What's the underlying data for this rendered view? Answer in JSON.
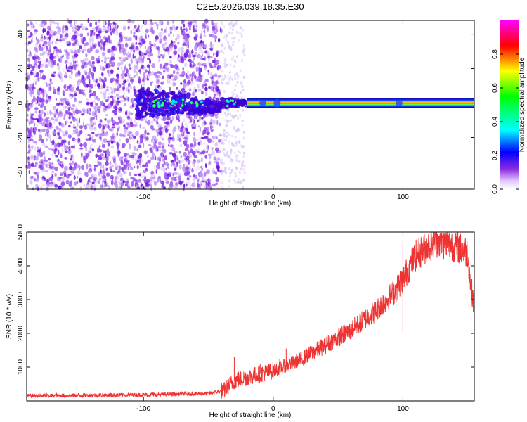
{
  "title": "C2E5.2026.039.18.35.E30",
  "colors": {
    "spectrogram_scatter": "#7a1fe0",
    "snr_line": "#ee3333",
    "axis": "#000000",
    "background": "#ffffff"
  },
  "chart_data": [
    {
      "type": "heatmap",
      "name": "spectrogram",
      "xlabel": "Height of straight line (km)",
      "ylabel": "Frequency (Hz)",
      "xlim": [
        -190,
        155
      ],
      "ylim": [
        -50,
        48
      ],
      "x_ticks": [
        -100,
        0,
        100
      ],
      "y_ticks": [
        -40,
        -20,
        0,
        20,
        40
      ],
      "x_tick_labels": [
        "-100",
        "0",
        "100"
      ],
      "y_tick_labels": [
        "-40",
        "-20",
        "0",
        "20",
        "40"
      ],
      "noise_region_x": [
        -190,
        -40
      ],
      "sparse_region_x": [
        -40,
        -22
      ],
      "signal_band": {
        "x_start": -20,
        "x_end": 155,
        "freq": 0
      },
      "signal_start_x": -105,
      "colorbar": {
        "label": "Normalized spectral amplitude",
        "range": [
          0.0,
          1.0
        ],
        "ticks": [
          0.0,
          0.2,
          0.4,
          0.6,
          0.8
        ],
        "tick_labels": [
          "0.0",
          "0.2",
          "0.4",
          "0.6",
          "0.8"
        ]
      }
    },
    {
      "type": "line",
      "name": "snr",
      "xlabel": "Height of straight line (km)",
      "ylabel": "SNR (10 * v/v)",
      "xlim": [
        -190,
        155
      ],
      "ylim": [
        0,
        5000
      ],
      "x_ticks": [
        -100,
        0,
        100
      ],
      "y_ticks": [
        1000,
        2000,
        3000,
        4000,
        5000
      ],
      "x_tick_labels": [
        "-100",
        "0",
        "100"
      ],
      "y_tick_labels": [
        "1000",
        "2000",
        "3000",
        "4000",
        "5000"
      ],
      "trend_points": [
        [
          -190,
          150
        ],
        [
          -100,
          180
        ],
        [
          -50,
          220
        ],
        [
          -38,
          300
        ],
        [
          -30,
          600
        ],
        [
          -10,
          800
        ],
        [
          0,
          900
        ],
        [
          20,
          1200
        ],
        [
          40,
          1650
        ],
        [
          60,
          2100
        ],
        [
          80,
          2700
        ],
        [
          95,
          3300
        ],
        [
          110,
          4300
        ],
        [
          125,
          4750
        ],
        [
          140,
          4600
        ],
        [
          150,
          4400
        ],
        [
          152,
          3500
        ],
        [
          155,
          2800
        ]
      ],
      "spikes": [
        [
          -30,
          1300
        ],
        [
          10,
          1550
        ],
        [
          100,
          4750
        ],
        [
          100,
          2000
        ],
        [
          -10,
          1100
        ],
        [
          5,
          1250
        ]
      ]
    }
  ]
}
